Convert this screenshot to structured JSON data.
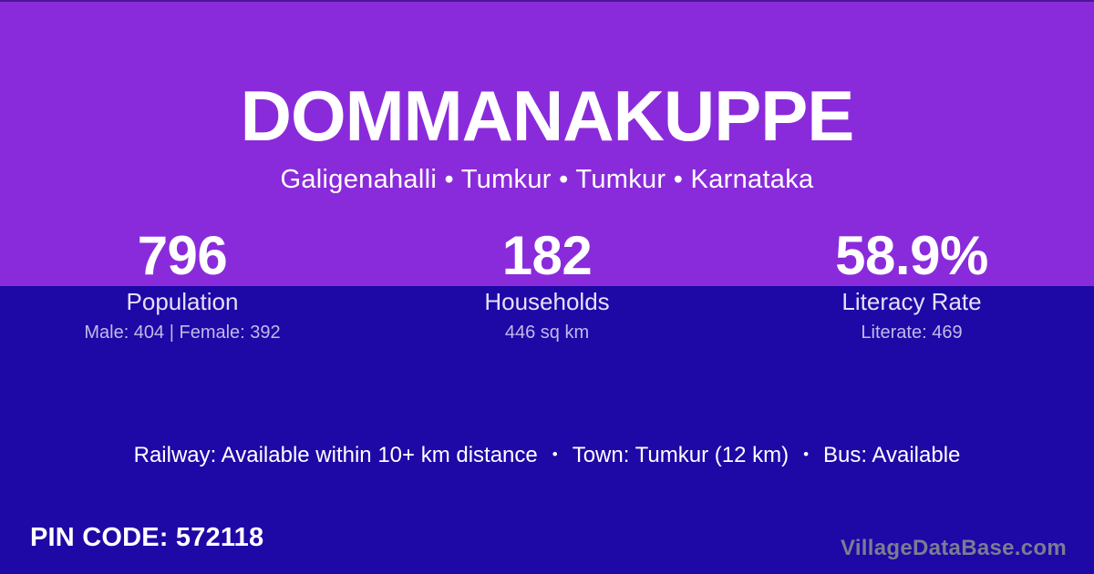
{
  "card": {
    "title": "DOMMANAKUPPE",
    "subtitle": "Galigenahalli • Tumkur • Tumkur • Karnataka"
  },
  "stats": [
    {
      "value": "796",
      "label": "Population",
      "detail": "Male: 404 | Female: 392"
    },
    {
      "value": "182",
      "label": "Households",
      "detail": "446 sq km"
    },
    {
      "value": "58.9%",
      "label": "Literacy Rate",
      "detail": "Literate: 469"
    }
  ],
  "transport": {
    "items": [
      "Railway: Available within 10+ km distance",
      "Town: Tumkur (12 km)",
      "Bus: Available"
    ],
    "separator": "•"
  },
  "footer": {
    "pin_code": "PIN CODE: 572118",
    "watermark": "VillageDataBase.com"
  },
  "colors": {
    "top_background": "#8A2BDB",
    "bottom_background": "#1E08A6",
    "text_primary": "#FFFFFF",
    "text_label": "#E6E0F6",
    "text_muted": "#C2B9E8",
    "watermark": "#7C7C92"
  }
}
